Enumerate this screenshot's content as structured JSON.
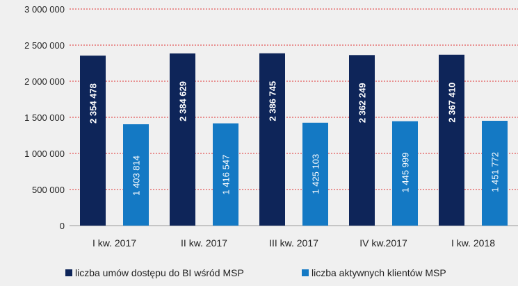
{
  "chart_data": {
    "type": "bar",
    "title": "",
    "xlabel": "",
    "ylabel": "",
    "categories": [
      "I kw. 2017",
      "II kw. 2017",
      "III kw. 2017",
      "IV kw.2017",
      "I kw. 2018"
    ],
    "series": [
      {
        "name": "liczba umów dostępu do BI wśród MSP",
        "color": "#0e2559",
        "values": [
          2354478,
          2384629,
          2386745,
          2362249,
          2367410
        ],
        "labels": [
          "2 354 478",
          "2 384 629",
          "2 386 745",
          "2 362 249",
          "2 367 410"
        ]
      },
      {
        "name": "liczba aktywnych klientów MSP",
        "color": "#1479c4",
        "values": [
          1403814,
          1416547,
          1425103,
          1445999,
          1451772
        ],
        "labels": [
          "1 403 814",
          "1 416 547",
          "1 425 103",
          "1 445 999",
          "1 451 772"
        ]
      }
    ],
    "ylim": [
      0,
      3000000
    ],
    "yticks": [
      0,
      500000,
      1000000,
      1500000,
      2000000,
      2500000,
      3000000
    ],
    "ytick_labels": [
      "0",
      "500 000",
      "1 000 000",
      "1 500 000",
      "2 000 000",
      "2 500 000",
      "3 000 000"
    ],
    "grid": {
      "on": true,
      "style": "dashed",
      "color": "#e03030"
    },
    "legend_position": "bottom"
  }
}
